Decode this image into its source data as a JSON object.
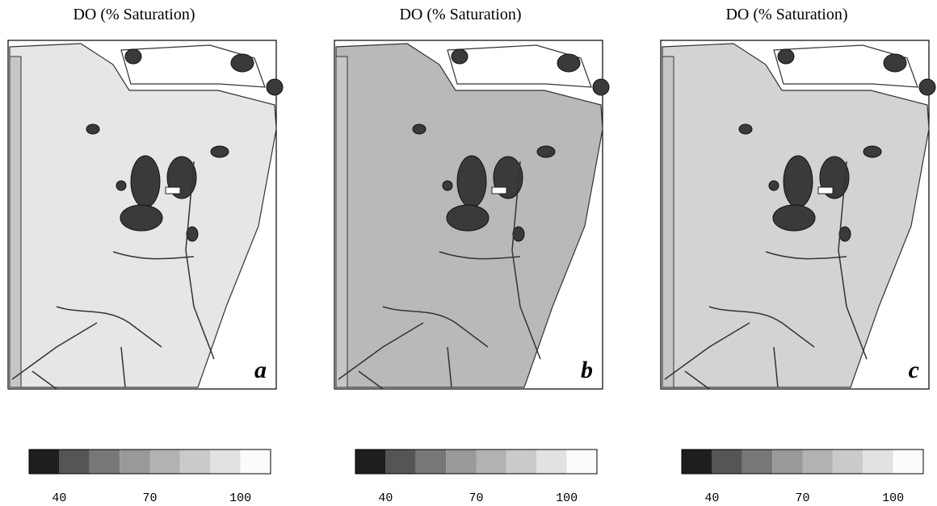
{
  "panels": [
    {
      "title": "DO (% Saturation)",
      "label": "a",
      "fill": "#e6e6e6"
    },
    {
      "title": "DO (% Saturation)",
      "label": "b",
      "fill": "#b9b9b9"
    },
    {
      "title": "DO (% Saturation)",
      "label": "c",
      "fill": "#d3d3d3"
    }
  ],
  "colorbar": {
    "lim": [
      30,
      110
    ],
    "ticks": [
      40,
      70,
      100
    ],
    "bounds": [
      30,
      40,
      50,
      60,
      70,
      80,
      90,
      100,
      110
    ],
    "colors": [
      "#1e1e1e",
      "#555555",
      "#777777",
      "#999999",
      "#b2b2b2",
      "#cacaca",
      "#e2e2e2",
      "#fbfbfb"
    ]
  }
}
